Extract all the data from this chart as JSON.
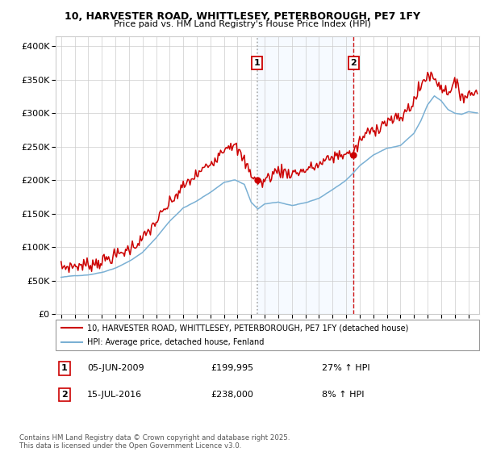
{
  "title": "10, HARVESTER ROAD, WHITTLESEY, PETERBOROUGH, PE7 1FY",
  "subtitle": "Price paid vs. HM Land Registry's House Price Index (HPI)",
  "ytick_vals": [
    0,
    50000,
    100000,
    150000,
    200000,
    250000,
    300000,
    350000,
    400000
  ],
  "ytick_labels": [
    "£0",
    "£50K",
    "£100K",
    "£150K",
    "£200K",
    "£250K",
    "£300K",
    "£350K",
    "£400K"
  ],
  "ylim": [
    0,
    415000
  ],
  "xmin": 1994.6,
  "xmax": 2025.8,
  "xticks": [
    1995,
    1996,
    1997,
    1998,
    1999,
    2000,
    2001,
    2002,
    2003,
    2004,
    2005,
    2006,
    2007,
    2008,
    2009,
    2010,
    2011,
    2012,
    2013,
    2014,
    2015,
    2016,
    2017,
    2018,
    2019,
    2020,
    2021,
    2022,
    2023,
    2024,
    2025
  ],
  "line1_color": "#cc0000",
  "line2_color": "#7ab0d4",
  "line1_label": "10, HARVESTER ROAD, WHITTLESEY, PETERBOROUGH, PE7 1FY (detached house)",
  "line2_label": "HPI: Average price, detached house, Fenland",
  "t1_year": 2009.43,
  "t1_price": 199995,
  "t1_label": "1",
  "t1_date_str": "05-JUN-2009",
  "t1_price_str": "£199,995",
  "t1_hpi_str": "27% ↑ HPI",
  "t1_line_color": "#aaaaaa",
  "t1_line_style": "dotted",
  "t2_year": 2016.54,
  "t2_price": 238000,
  "t2_label": "2",
  "t2_date_str": "15-JUL-2016",
  "t2_price_str": "£238,000",
  "t2_hpi_str": "8% ↑ HPI",
  "t2_line_color": "#cc0000",
  "t2_line_style": "dashed",
  "shade_color": "#ddeeff",
  "marker_color": "#cc0000",
  "grid_color": "#cccccc",
  "footer_text": "Contains HM Land Registry data © Crown copyright and database right 2025.\nThis data is licensed under the Open Government Licence v3.0."
}
